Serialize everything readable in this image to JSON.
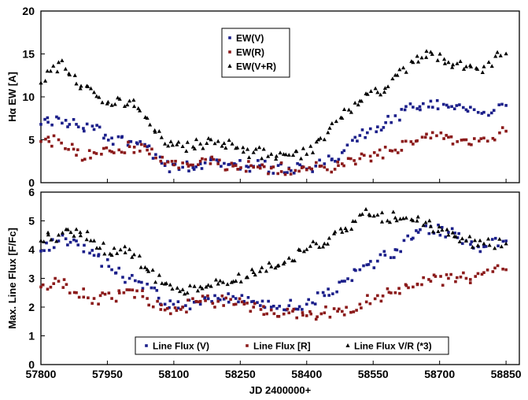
{
  "chart_data": [
    {
      "type": "scatter",
      "ylabel": "Hα EW [A]",
      "xlim": [
        57800,
        58880
      ],
      "ylim": [
        0,
        20
      ],
      "yticks": [
        0,
        5,
        10,
        15,
        20
      ],
      "legend_position": "top-center",
      "series": [
        {
          "name": "EW(V)",
          "color": "#1b1f8a",
          "marker": "square",
          "x": [
            57800,
            57840,
            57880,
            57920,
            57960,
            58000,
            58040,
            58080,
            58120,
            58160,
            58200,
            58240,
            58280,
            58320,
            58360,
            58400,
            58440,
            58480,
            58520,
            58560,
            58600,
            58640,
            58680,
            58720,
            58760,
            58800,
            58850
          ],
          "y": [
            6.8,
            7.5,
            6.8,
            6.2,
            5.2,
            4.8,
            4.2,
            2.0,
            1.8,
            2.2,
            2.4,
            2.1,
            1.9,
            1.8,
            1.7,
            1.6,
            2.2,
            3.5,
            5.5,
            6.5,
            7.8,
            8.8,
            9.5,
            8.8,
            8.5,
            8.2,
            9.0
          ]
        },
        {
          "name": "EW(R)",
          "color": "#8b1a1a",
          "marker": "square",
          "x": [
            57800,
            57840,
            57880,
            57920,
            57960,
            58000,
            58040,
            58080,
            58120,
            58160,
            58200,
            58240,
            58280,
            58320,
            58360,
            58400,
            58440,
            58480,
            58520,
            58560,
            58600,
            58640,
            58680,
            58720,
            58760,
            58800,
            58850
          ],
          "y": [
            4.8,
            5.0,
            3.2,
            3.5,
            3.6,
            4.2,
            3.8,
            2.2,
            2.3,
            2.5,
            2.2,
            2.0,
            1.8,
            1.7,
            1.6,
            1.5,
            1.8,
            2.2,
            2.8,
            3.2,
            3.8,
            4.5,
            5.2,
            5.3,
            5.0,
            5.2,
            6.0
          ]
        },
        {
          "name": "EW(V+R)",
          "color": "#000000",
          "marker": "triangle",
          "x": [
            57800,
            57840,
            57880,
            57920,
            57960,
            58000,
            58040,
            58080,
            58120,
            58160,
            58200,
            58240,
            58280,
            58320,
            58360,
            58400,
            58440,
            58480,
            58520,
            58560,
            58600,
            58640,
            58680,
            58720,
            58760,
            58800,
            58850
          ],
          "y": [
            11.6,
            14.0,
            11.5,
            10.5,
            9.0,
            9.5,
            7.5,
            4.5,
            4.2,
            4.5,
            4.8,
            4.0,
            3.5,
            3.3,
            3.2,
            3.3,
            5.0,
            7.5,
            9.5,
            10.5,
            12.5,
            14.0,
            15.2,
            14.0,
            13.5,
            13.5,
            15.0
          ]
        }
      ]
    },
    {
      "type": "scatter",
      "ylabel": "Max. Line Flux [F/Fc]",
      "xlabel": "JD 2400000+",
      "xlim": [
        57800,
        58880
      ],
      "ylim": [
        0,
        6
      ],
      "yticks": [
        0,
        1,
        2,
        3,
        4,
        5,
        6
      ],
      "xticks": [
        57800,
        57950,
        58100,
        58250,
        58400,
        58550,
        58700,
        58850
      ],
      "legend_position": "bottom-center",
      "series": [
        {
          "name": "Line Flux (V)",
          "color": "#1b1f8a",
          "marker": "square",
          "x": [
            57800,
            57840,
            57880,
            57920,
            57960,
            58000,
            58040,
            58080,
            58120,
            58160,
            58200,
            58240,
            58280,
            58320,
            58360,
            58400,
            58440,
            58480,
            58520,
            58560,
            58600,
            58640,
            58680,
            58720,
            58760,
            58800,
            58850
          ],
          "y": [
            3.95,
            4.3,
            4.3,
            3.8,
            3.3,
            3.0,
            2.8,
            2.1,
            2.0,
            2.1,
            2.3,
            2.3,
            2.2,
            2.0,
            2.05,
            2.1,
            2.4,
            2.9,
            3.3,
            3.6,
            4.0,
            4.4,
            4.8,
            4.6,
            4.3,
            4.1,
            4.3
          ]
        },
        {
          "name": "Line Flux [R]",
          "color": "#8b1a1a",
          "marker": "square",
          "x": [
            57800,
            57840,
            57880,
            57920,
            57960,
            58000,
            58040,
            58080,
            58120,
            58160,
            58200,
            58240,
            58280,
            58320,
            58360,
            58400,
            58440,
            58480,
            58520,
            58560,
            58600,
            58640,
            58680,
            58720,
            58760,
            58800,
            58850
          ],
          "y": [
            2.7,
            2.9,
            2.5,
            2.3,
            2.3,
            2.6,
            2.3,
            1.9,
            2.0,
            2.2,
            2.2,
            2.1,
            2.0,
            1.9,
            1.8,
            1.7,
            1.8,
            1.85,
            2.1,
            2.4,
            2.5,
            2.7,
            2.9,
            3.0,
            3.0,
            3.2,
            3.3
          ]
        },
        {
          "name": "Line Flux V/R (*3)",
          "color": "#000000",
          "marker": "triangle",
          "x": [
            57800,
            57840,
            57880,
            57920,
            57960,
            58000,
            58040,
            58080,
            58120,
            58160,
            58200,
            58240,
            58280,
            58320,
            58360,
            58400,
            58440,
            58480,
            58520,
            58560,
            58600,
            58640,
            58680,
            58720,
            58760,
            58800,
            58850
          ],
          "y": [
            4.3,
            4.5,
            4.7,
            4.3,
            3.8,
            4.0,
            3.3,
            2.8,
            2.6,
            2.7,
            2.8,
            2.9,
            3.2,
            3.4,
            3.7,
            4.0,
            4.2,
            4.6,
            5.2,
            5.2,
            5.1,
            5.0,
            4.8,
            4.5,
            4.3,
            4.2,
            4.2
          ]
        }
      ]
    }
  ]
}
